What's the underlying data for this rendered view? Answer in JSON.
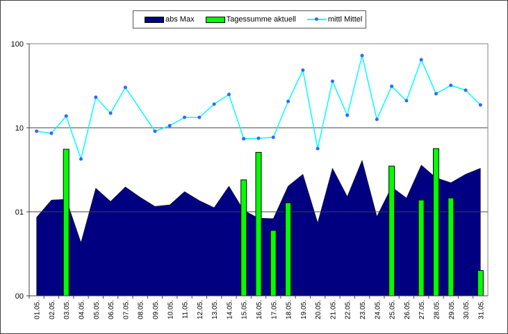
{
  "chart_data": {
    "type": "bar+area+line",
    "title": "",
    "xlabel": "",
    "ylabel": "",
    "yscale": "log",
    "ylim": [
      0.1,
      100
    ],
    "yticks": [
      {
        "value": 100,
        "label": "100"
      },
      {
        "value": 10,
        "label": "10"
      },
      {
        "value": 1,
        "label": "01"
      },
      {
        "value": 0.1,
        "label": "00"
      }
    ],
    "grid": true,
    "legend_position": "top-center",
    "categories": [
      "01.05.",
      "02.05.",
      "03.05.",
      "04.05.",
      "05.05.",
      "06.05.",
      "07.05.",
      "08.05.",
      "09.05.",
      "10.05.",
      "11.05.",
      "12.05.",
      "13.05.",
      "14.05.",
      "15.05.",
      "16.05.",
      "17.05.",
      "18.05.",
      "19.05.",
      "20.05.",
      "21.05.",
      "22.05.",
      "23.05.",
      "24.05.",
      "25.05.",
      "26.05.",
      "27.05.",
      "28.05.",
      "29.05.",
      "30.05.",
      "31.05."
    ],
    "series": [
      {
        "name": "abs Max",
        "kind": "area",
        "color": "#000080",
        "values": [
          0.86,
          1.38,
          1.41,
          0.43,
          1.91,
          1.33,
          1.98,
          1.49,
          1.16,
          1.21,
          1.74,
          1.36,
          1.12,
          2.02,
          1.04,
          0.84,
          0.83,
          2.02,
          2.8,
          0.74,
          3.3,
          1.52,
          4.1,
          0.88,
          1.98,
          1.46,
          3.6,
          2.54,
          2.22,
          2.8,
          3.3
        ]
      },
      {
        "name": "Tagessumme aktuell",
        "kind": "bar",
        "color": "#00ff00",
        "values": [
          null,
          null,
          5.55,
          null,
          null,
          null,
          null,
          null,
          null,
          null,
          null,
          null,
          null,
          null,
          2.4,
          5.1,
          0.6,
          1.28,
          null,
          null,
          null,
          null,
          null,
          null,
          3.5,
          null,
          1.38,
          5.65,
          1.46,
          null,
          0.2
        ]
      },
      {
        "name": "mittl Mittel",
        "kind": "line",
        "color": "#00ffff",
        "marker_color": "#3366ff",
        "values": [
          9.1,
          8.6,
          13.8,
          4.25,
          23.1,
          14.9,
          30.2,
          null,
          9.1,
          10.6,
          13.3,
          13.3,
          19.1,
          24.9,
          7.4,
          7.5,
          7.7,
          20.6,
          48.5,
          5.65,
          35.8,
          14.1,
          72.4,
          12.6,
          31.2,
          21.0,
          64.5,
          25.4,
          32,
          28,
          18.7
        ]
      }
    ]
  }
}
